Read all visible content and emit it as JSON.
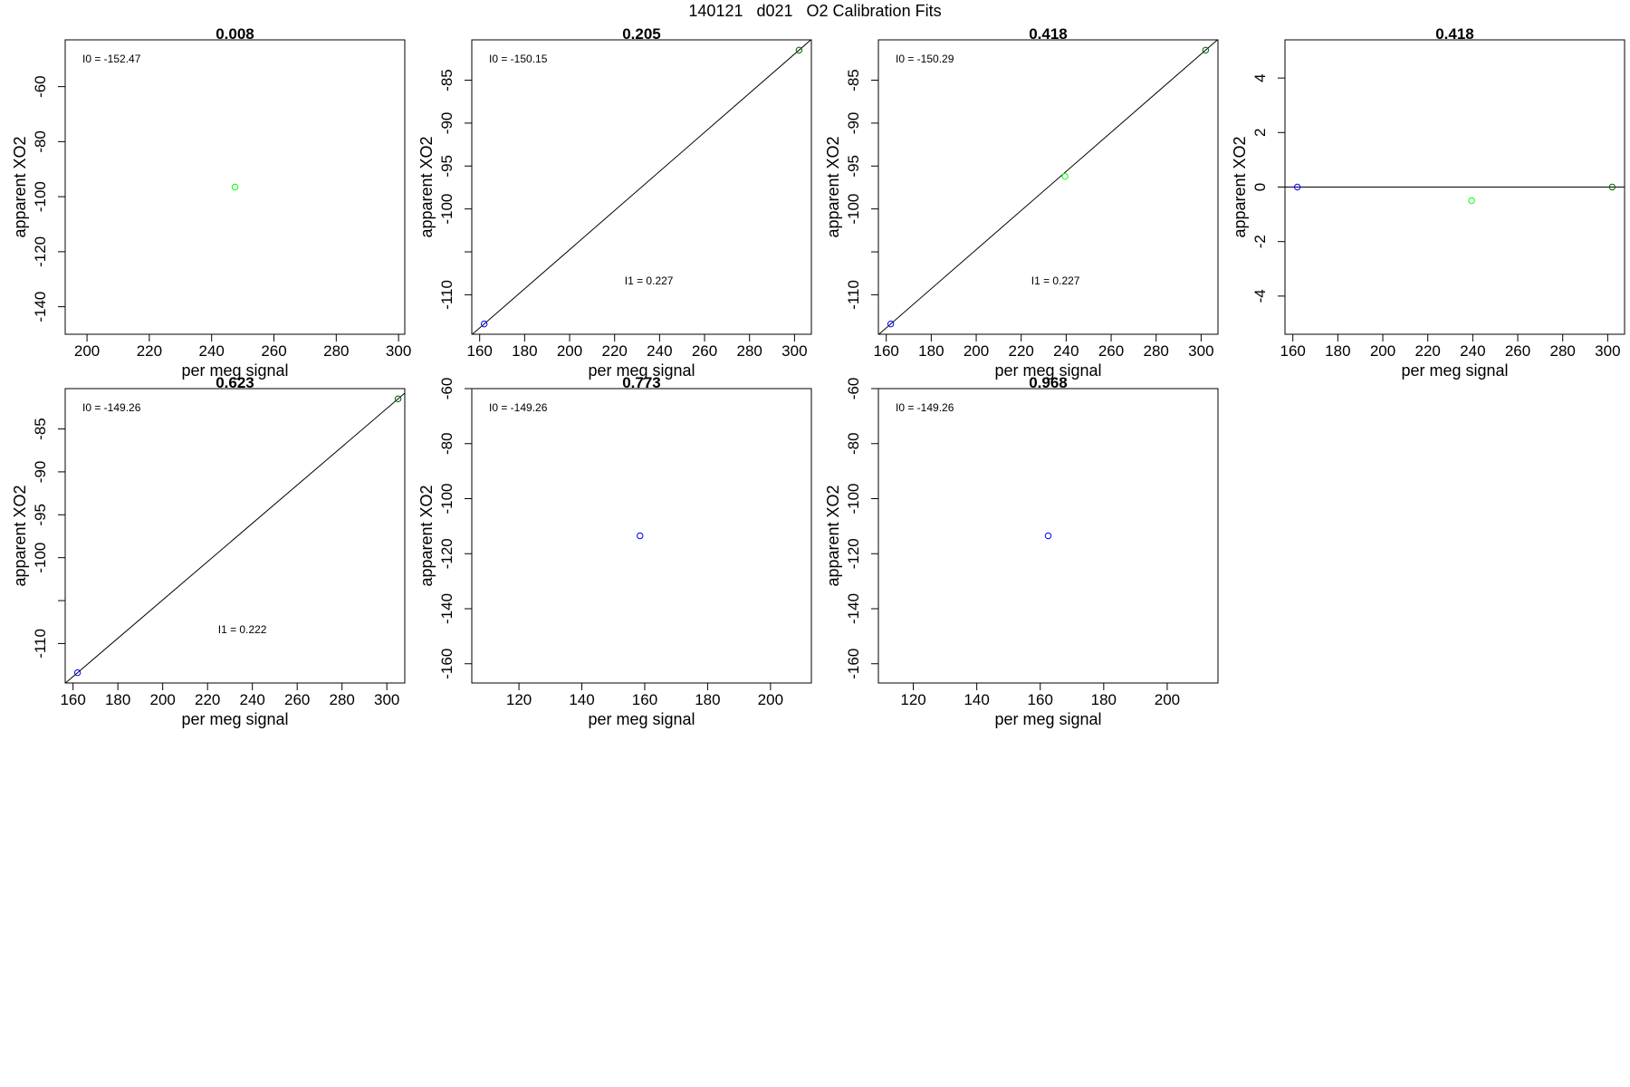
{
  "figure": {
    "title": "140121   d021   O2 Calibration Fits"
  },
  "colors": {
    "axis": "#000000",
    "fit_line": "#000000",
    "low_point": "#0000ff",
    "mid_point": "#00ff00",
    "high_point": "#006400"
  },
  "chart_data": [
    {
      "type": "scatter",
      "title": "0.008",
      "xlabel": "per meg signal",
      "ylabel": "apparent XO2",
      "xlim": [
        193,
        302
      ],
      "ylim": [
        -150,
        -43
      ],
      "xticks": [
        200,
        220,
        240,
        260,
        280,
        300
      ],
      "yticks": [
        -60,
        -80,
        -100,
        -120,
        -140
      ],
      "fit_line": false,
      "annotations": [
        {
          "text": "I0 =  -152.47",
          "pos": "top-left"
        }
      ],
      "points": [
        {
          "x": 247.5,
          "y": -96.5,
          "color": "mid_point"
        }
      ]
    },
    {
      "type": "scatter",
      "title": "0.205",
      "xlabel": "per meg signal",
      "ylabel": "apparent XO2",
      "xlim": [
        156.5,
        307.5
      ],
      "ylim": [
        -114.6,
        -80.3
      ],
      "xticks": [
        160,
        180,
        200,
        220,
        240,
        260,
        280,
        300
      ],
      "yticks": [
        -85,
        -90,
        -95,
        -100,
        -110
      ],
      "yticks_minor": [
        -105
      ],
      "fit_line": true,
      "annotations": [
        {
          "text": "I0 =  -150.15",
          "pos": "top-left"
        },
        {
          "text": "I1 =  0.227",
          "pos": "lower-middle"
        }
      ],
      "points": [
        {
          "x": 162,
          "y": -113.4,
          "color": "low_point"
        },
        {
          "x": 302,
          "y": -81.5,
          "color": "high_point"
        }
      ]
    },
    {
      "type": "scatter",
      "title": "0.418",
      "xlabel": "per meg signal",
      "ylabel": "apparent XO2",
      "xlim": [
        156.5,
        307.5
      ],
      "ylim": [
        -114.6,
        -80.3
      ],
      "xticks": [
        160,
        180,
        200,
        220,
        240,
        260,
        280,
        300
      ],
      "yticks": [
        -85,
        -90,
        -95,
        -100,
        -110
      ],
      "yticks_minor": [
        -105
      ],
      "fit_line": true,
      "annotations": [
        {
          "text": "I0 =  -150.29",
          "pos": "top-left"
        },
        {
          "text": "I1 =  0.227",
          "pos": "lower-middle"
        }
      ],
      "points": [
        {
          "x": 162,
          "y": -113.4,
          "color": "low_point"
        },
        {
          "x": 239.5,
          "y": -96.2,
          "color": "mid_point"
        },
        {
          "x": 302,
          "y": -81.5,
          "color": "high_point"
        }
      ]
    },
    {
      "type": "scatter",
      "title": "0.418",
      "xlabel": "per meg signal",
      "ylabel": "apparent XO2",
      "xlim": [
        156.5,
        307.5
      ],
      "ylim": [
        -5.4,
        5.4
      ],
      "xticks": [
        160,
        180,
        200,
        220,
        240,
        260,
        280,
        300
      ],
      "yticks": [
        4,
        2,
        0,
        -2,
        -4
      ],
      "fit_line": "horizontal-zero",
      "annotations": [],
      "points": [
        {
          "x": 162,
          "y": 0,
          "color": "low_point"
        },
        {
          "x": 239.5,
          "y": -0.5,
          "color": "mid_point"
        },
        {
          "x": 302,
          "y": 0,
          "color": "high_point"
        }
      ]
    },
    {
      "type": "scatter",
      "title": "0.623",
      "xlabel": "per meg signal",
      "ylabel": "apparent XO2",
      "xlim": [
        156.5,
        308
      ],
      "ylim": [
        -114.6,
        -80.3
      ],
      "xticks": [
        160,
        180,
        200,
        220,
        240,
        260,
        280,
        300
      ],
      "yticks": [
        -85,
        -90,
        -95,
        -100,
        -110
      ],
      "yticks_minor": [
        -105
      ],
      "fit_line": true,
      "annotations": [
        {
          "text": "I0 =  -149.26",
          "pos": "top-left"
        },
        {
          "text": "I1 =  0.222",
          "pos": "lower-middle"
        }
      ],
      "points": [
        {
          "x": 162,
          "y": -113.4,
          "color": "low_point"
        },
        {
          "x": 305,
          "y": -81.5,
          "color": "high_point"
        }
      ]
    },
    {
      "type": "scatter",
      "title": "0.773",
      "xlabel": "per meg signal",
      "ylabel": "apparent XO2",
      "xlim": [
        105,
        213
      ],
      "ylim": [
        -167,
        -60
      ],
      "xticks": [
        120,
        140,
        160,
        180,
        200
      ],
      "yticks": [
        -60,
        -80,
        -100,
        -120,
        -140,
        -160
      ],
      "fit_line": false,
      "annotations": [
        {
          "text": "I0 =  -149.26",
          "pos": "top-left"
        }
      ],
      "points": [
        {
          "x": 158.5,
          "y": -113.5,
          "color": "low_point"
        }
      ]
    },
    {
      "type": "scatter",
      "title": "0.968",
      "xlabel": "per meg signal",
      "ylabel": "apparent XO2",
      "xlim": [
        109,
        216
      ],
      "ylim": [
        -167,
        -60
      ],
      "xticks": [
        120,
        140,
        160,
        180,
        200
      ],
      "yticks": [
        -60,
        -80,
        -100,
        -120,
        -140,
        -160
      ],
      "fit_line": false,
      "annotations": [
        {
          "text": "I0 =  -149.26",
          "pos": "top-left"
        }
      ],
      "points": [
        {
          "x": 162.5,
          "y": -113.5,
          "color": "low_point"
        }
      ]
    }
  ]
}
